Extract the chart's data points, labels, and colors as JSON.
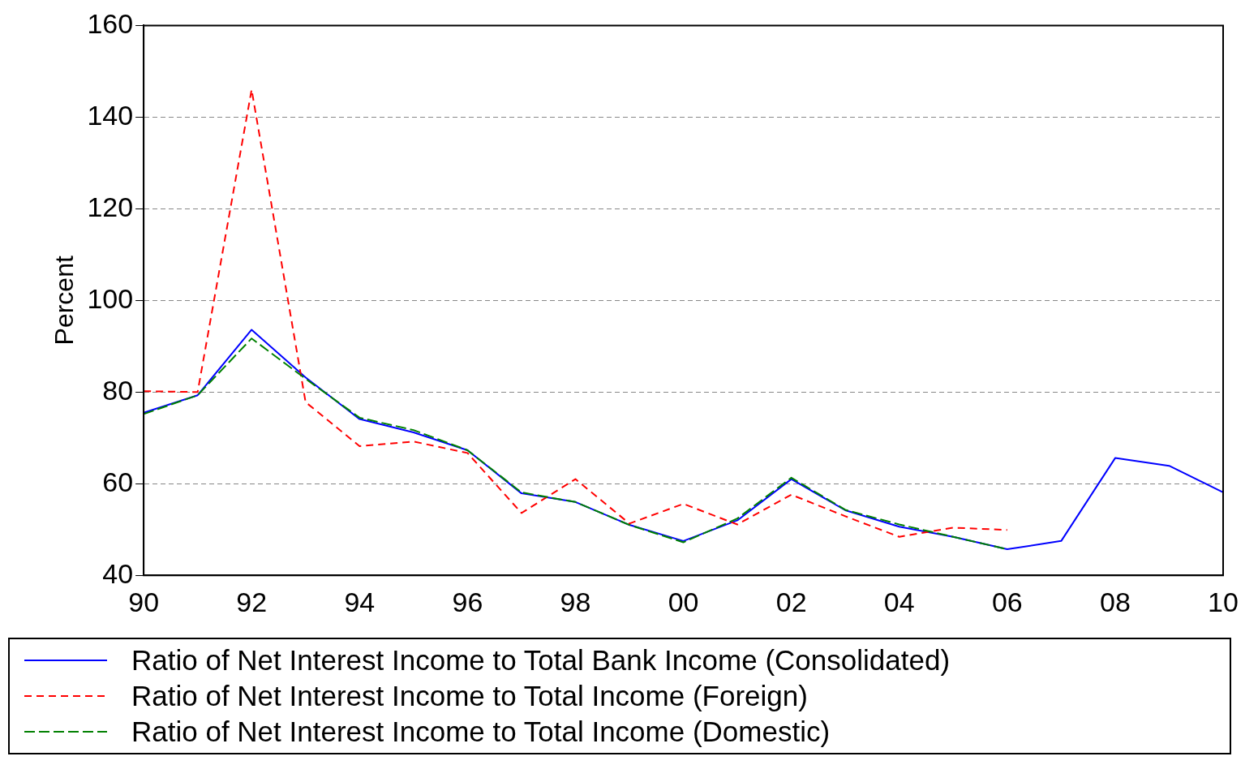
{
  "chart_data": {
    "type": "line",
    "ylabel": "Percent",
    "categories": [
      "90",
      null,
      "92",
      null,
      "94",
      null,
      "96",
      null,
      "98",
      null,
      "00",
      null,
      "02",
      null,
      "04",
      null,
      "06",
      null,
      "08",
      null,
      "10"
    ],
    "ylim": [
      40,
      160
    ],
    "yticks": [
      40,
      60,
      80,
      100,
      120,
      140,
      160
    ],
    "grid": "y",
    "legend": "bottom",
    "marker": "none",
    "series": [
      {
        "name": "Ratio of Net Interest Income to Total Bank Income (Consolidated)",
        "color": "#0000ff",
        "line_style": "solid",
        "values": [
          75.5,
          79.3,
          93.6,
          83.2,
          74.1,
          71.2,
          67.3,
          57.9,
          56,
          51,
          47.5,
          52,
          61,
          54.2,
          50.6,
          48.4,
          45.7,
          47.5,
          65.6,
          63.9,
          58.1
        ]
      },
      {
        "name": "Ratio of Net Interest Income to Total Income (Foreign)",
        "color": "#ff0000",
        "line_style": "dashed",
        "values": [
          80.2,
          80,
          146,
          77.8,
          68.2,
          69.2,
          66.7,
          53.6,
          61,
          51.3,
          55.6,
          51.1,
          57.6,
          52.9,
          48.4,
          50.4,
          49.9,
          null,
          null,
          null,
          null
        ]
      },
      {
        "name": "Ratio of Net Interest Income to Total Income (Domestic)",
        "color": "#008000",
        "line_style": "longdash",
        "values": [
          75.2,
          79.3,
          91.7,
          82.9,
          74.4,
          71.7,
          67.3,
          58.1,
          56,
          51,
          47.2,
          52.4,
          61.3,
          54.3,
          51.1,
          48.4,
          45.7,
          null,
          null,
          null,
          null
        ]
      }
    ]
  }
}
